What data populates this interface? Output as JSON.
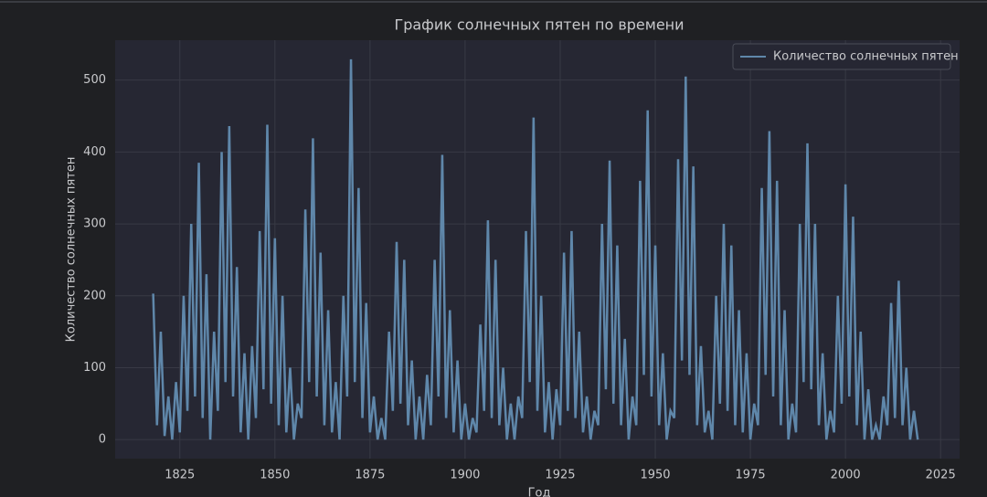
{
  "chart_data": {
    "type": "line",
    "title": "График солнечных пятен по времени",
    "xlabel": "Год",
    "ylabel": "Количество солнечных пятен",
    "x": [
      1818,
      1819,
      1820,
      1821,
      1822,
      1823,
      1824,
      1825,
      1826,
      1827,
      1828,
      1829,
      1830,
      1831,
      1832,
      1833,
      1834,
      1835,
      1836,
      1837,
      1838,
      1839,
      1840,
      1841,
      1842,
      1843,
      1844,
      1845,
      1846,
      1847,
      1848,
      1849,
      1850,
      1851,
      1852,
      1853,
      1854,
      1855,
      1856,
      1857,
      1858,
      1859,
      1860,
      1861,
      1862,
      1863,
      1864,
      1865,
      1866,
      1867,
      1868,
      1869,
      1870,
      1871,
      1872,
      1873,
      1874,
      1875,
      1876,
      1877,
      1878,
      1879,
      1880,
      1881,
      1882,
      1883,
      1884,
      1885,
      1886,
      1887,
      1888,
      1889,
      1890,
      1891,
      1892,
      1893,
      1894,
      1895,
      1896,
      1897,
      1898,
      1899,
      1900,
      1901,
      1902,
      1903,
      1904,
      1905,
      1906,
      1907,
      1908,
      1909,
      1910,
      1911,
      1912,
      1913,
      1914,
      1915,
      1916,
      1917,
      1918,
      1919,
      1920,
      1921,
      1922,
      1923,
      1924,
      1925,
      1926,
      1927,
      1928,
      1929,
      1930,
      1931,
      1932,
      1933,
      1934,
      1935,
      1936,
      1937,
      1938,
      1939,
      1940,
      1941,
      1942,
      1943,
      1944,
      1945,
      1946,
      1947,
      1948,
      1949,
      1950,
      1951,
      1952,
      1953,
      1954,
      1955,
      1956,
      1957,
      1958,
      1959,
      1960,
      1961,
      1962,
      1963,
      1964,
      1965,
      1966,
      1967,
      1968,
      1969,
      1970,
      1971,
      1972,
      1973,
      1974,
      1975,
      1976,
      1977,
      1978,
      1979,
      1980,
      1981,
      1982,
      1983,
      1984,
      1985,
      1986,
      1987,
      1988,
      1989,
      1990,
      1991,
      1992,
      1993,
      1994,
      1995,
      1996,
      1997,
      1998,
      1999,
      2000,
      2001,
      2002,
      2003,
      2004,
      2005,
      2006,
      2007,
      2008,
      2009,
      2010,
      2011,
      2012,
      2013,
      2014,
      2015,
      2016,
      2017,
      2018,
      2019
    ],
    "series": [
      {
        "name": "Количество солнечных пятен",
        "color": "#5f87aa",
        "values": [
          203,
          20,
          150,
          5,
          60,
          0,
          80,
          10,
          200,
          40,
          300,
          60,
          385,
          30,
          230,
          0,
          150,
          40,
          400,
          80,
          436,
          60,
          240,
          10,
          120,
          0,
          130,
          30,
          290,
          70,
          438,
          50,
          280,
          20,
          200,
          10,
          100,
          0,
          50,
          30,
          320,
          80,
          419,
          60,
          260,
          20,
          180,
          10,
          80,
          0,
          200,
          60,
          529,
          80,
          350,
          30,
          190,
          10,
          60,
          0,
          30,
          0,
          150,
          40,
          275,
          50,
          250,
          20,
          110,
          0,
          60,
          0,
          90,
          20,
          250,
          60,
          396,
          30,
          180,
          10,
          110,
          0,
          50,
          0,
          30,
          10,
          160,
          40,
          305,
          30,
          250,
          20,
          100,
          0,
          50,
          0,
          60,
          30,
          290,
          80,
          448,
          40,
          200,
          10,
          80,
          0,
          70,
          20,
          260,
          40,
          290,
          30,
          150,
          10,
          60,
          0,
          40,
          20,
          300,
          70,
          388,
          50,
          270,
          20,
          140,
          0,
          60,
          20,
          360,
          90,
          458,
          60,
          270,
          20,
          120,
          0,
          40,
          30,
          390,
          110,
          505,
          90,
          380,
          20,
          130,
          10,
          40,
          0,
          200,
          50,
          300,
          40,
          270,
          20,
          180,
          10,
          120,
          0,
          50,
          20,
          350,
          90,
          429,
          60,
          360,
          20,
          180,
          0,
          50,
          10,
          300,
          80,
          412,
          70,
          300,
          20,
          120,
          0,
          40,
          10,
          200,
          50,
          355,
          60,
          310,
          20,
          150,
          0,
          70,
          0,
          20,
          0,
          60,
          20,
          190,
          30,
          221,
          20,
          100,
          0,
          40,
          0
        ]
      }
    ],
    "xlim": [
      1808,
      2030
    ],
    "ylim": [
      -26.5,
      555.5
    ],
    "xticks": [
      1825,
      1850,
      1875,
      1900,
      1925,
      1950,
      1975,
      2000,
      2025
    ],
    "yticks": [
      0,
      100,
      200,
      300,
      400,
      500
    ],
    "grid": true,
    "legend": "upper right"
  }
}
